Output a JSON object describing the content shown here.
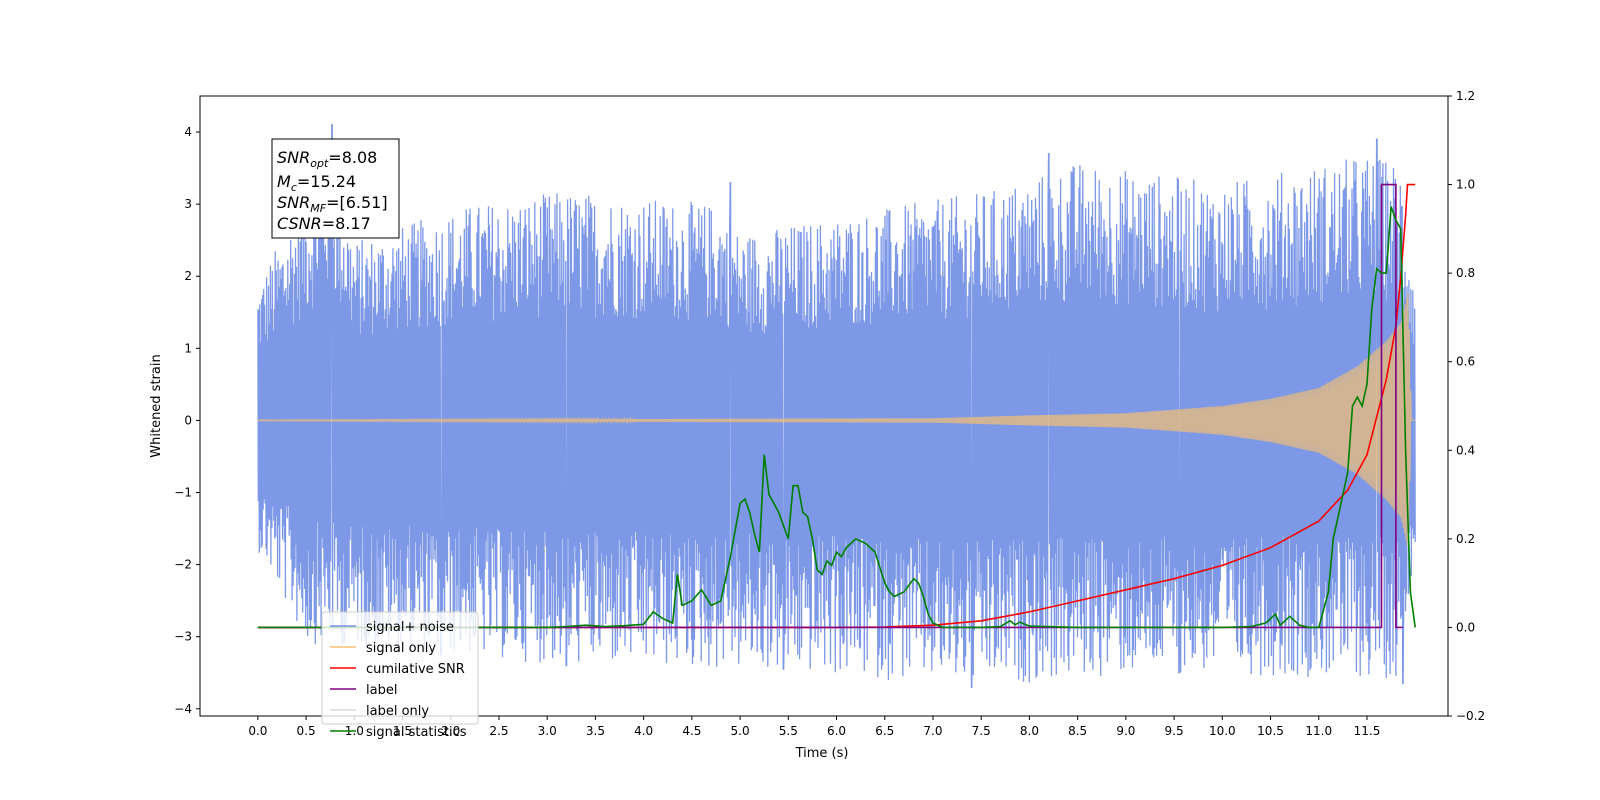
{
  "chart_data": {
    "type": "line",
    "xlabel": "Time (s)",
    "ylabel": "Whitened strain",
    "xlim": [
      -0.6,
      12.34
    ],
    "ylim": [
      -4.1,
      4.5
    ],
    "y2lim": [
      -0.2,
      1.2
    ],
    "xticks": [
      "0.0",
      "0.5",
      "1.0",
      "1.5",
      "2.0",
      "2.5",
      "3.0",
      "3.5",
      "4.0",
      "4.5",
      "5.0",
      "5.5",
      "6.0",
      "6.5",
      "7.0",
      "7.5",
      "8.0",
      "8.5",
      "9.0",
      "9.5",
      "10.0",
      "10.5",
      "11.0",
      "11.5"
    ],
    "yticks": [
      -4,
      -3,
      -2,
      -1,
      0,
      1,
      2,
      3,
      4
    ],
    "y2ticks": [
      -0.2,
      0.0,
      0.2,
      0.4,
      0.6,
      0.8,
      1.0,
      1.2
    ],
    "grid": false,
    "legend_position": "lower-left",
    "legend": [
      {
        "label": "signal+ noise",
        "color": "#7592e6"
      },
      {
        "label": "signal only",
        "color": "#f5c070"
      },
      {
        "label": "cumilative SNR",
        "color": "#ff0000"
      },
      {
        "label": "label",
        "color": "#800080"
      },
      {
        "label": "label only",
        "color": "#d8d8d8"
      },
      {
        "label": "signal statistics",
        "color": "#008000"
      }
    ],
    "annotation": {
      "snr_opt": {
        "sym": "SNR",
        "sub": "opt",
        "value": "=8.08"
      },
      "mc": {
        "sym": "M",
        "sub": "c",
        "value": "=15.24"
      },
      "snr_mf": {
        "sym": "SNR",
        "sub": "MF",
        "value": "=[6.51]"
      },
      "csnr": {
        "sym": "CSNR",
        "value": "=8.17"
      }
    },
    "series": [
      {
        "name": "signal+ noise",
        "axis": "left",
        "color": "#7592e6",
        "x_range": [
          0.0,
          12.0
        ],
        "envelope_top": [
          [
            0.0,
            1.9
          ],
          [
            0.75,
            3.9
          ],
          [
            1.0,
            2.5
          ],
          [
            2.2,
            3.0
          ],
          [
            3.2,
            3.2
          ],
          [
            4.8,
            3.0
          ],
          [
            5.0,
            2.6
          ],
          [
            7.6,
            3.2
          ],
          [
            8.5,
            3.6
          ],
          [
            10.0,
            3.3
          ],
          [
            11.5,
            3.7
          ],
          [
            11.85,
            3.6
          ],
          [
            12.0,
            2.0
          ]
        ],
        "envelope_bottom": [
          [
            0.0,
            -1.8
          ],
          [
            0.5,
            -3.1
          ],
          [
            3.2,
            -3.4
          ],
          [
            5.5,
            -3.5
          ],
          [
            7.4,
            -3.7
          ],
          [
            9.5,
            -3.5
          ],
          [
            11.8,
            -3.6
          ],
          [
            12.0,
            -1.8
          ]
        ],
        "spikes": [
          [
            0.77,
            4.1
          ],
          [
            1.9,
            -3.25
          ],
          [
            3.2,
            -3.4
          ],
          [
            4.9,
            3.3
          ],
          [
            5.45,
            -3.45
          ],
          [
            7.4,
            -3.7
          ],
          [
            8.2,
            3.7
          ],
          [
            9.55,
            -3.5
          ],
          [
            11.6,
            3.9
          ],
          [
            11.87,
            -3.65
          ]
        ]
      },
      {
        "name": "signal only",
        "axis": "left",
        "color": "#f5c070",
        "x_range": [
          0.0,
          12.0
        ],
        "amplitude": [
          [
            0.0,
            0.005
          ],
          [
            7.0,
            0.03
          ],
          [
            8.0,
            0.07
          ],
          [
            9.0,
            0.1
          ],
          [
            10.0,
            0.2
          ],
          [
            10.5,
            0.3
          ],
          [
            11.0,
            0.45
          ],
          [
            11.4,
            0.75
          ],
          [
            11.7,
            1.1
          ],
          [
            11.85,
            1.35
          ],
          [
            11.93,
            1.8
          ],
          [
            11.96,
            0.0
          ]
        ]
      },
      {
        "name": "cumilative SNR",
        "axis": "right",
        "color": "#ff0000",
        "x": [
          0.0,
          6.0,
          6.5,
          7.0,
          7.5,
          8.0,
          8.5,
          9.0,
          9.5,
          10.0,
          10.5,
          11.0,
          11.3,
          11.5,
          11.7,
          11.8,
          11.85,
          11.9,
          11.92,
          12.0
        ],
        "values": [
          0.0,
          0.0,
          0.001,
          0.005,
          0.015,
          0.035,
          0.06,
          0.085,
          0.11,
          0.14,
          0.18,
          0.24,
          0.31,
          0.39,
          0.56,
          0.68,
          0.79,
          0.93,
          1.0,
          1.0
        ]
      },
      {
        "name": "label",
        "axis": "right",
        "color": "#800080",
        "x": [
          0.0,
          11.65,
          11.65,
          11.8,
          11.8,
          11.87
        ],
        "values": [
          0.0,
          0.0,
          1.0,
          1.0,
          0.0,
          0.0
        ]
      },
      {
        "name": "signal statistics",
        "axis": "right",
        "color": "#008000",
        "x": [
          0.0,
          3.0,
          3.2,
          3.4,
          3.6,
          3.8,
          4.0,
          4.1,
          4.2,
          4.3,
          4.35,
          4.4,
          4.5,
          4.6,
          4.7,
          4.8,
          4.9,
          5.0,
          5.05,
          5.1,
          5.15,
          5.2,
          5.25,
          5.3,
          5.4,
          5.5,
          5.55,
          5.6,
          5.65,
          5.7,
          5.75,
          5.8,
          5.85,
          5.9,
          5.95,
          6.0,
          6.05,
          6.1,
          6.2,
          6.3,
          6.4,
          6.5,
          6.55,
          6.6,
          6.7,
          6.8,
          6.85,
          6.9,
          6.95,
          7.0,
          7.1,
          7.5,
          7.7,
          7.8,
          7.85,
          7.9,
          8.0,
          8.5,
          9.0,
          9.5,
          10.0,
          10.3,
          10.45,
          10.55,
          10.6,
          10.7,
          10.8,
          10.9,
          11.0,
          11.1,
          11.15,
          11.2,
          11.3,
          11.35,
          11.4,
          11.45,
          11.5,
          11.55,
          11.6,
          11.65,
          11.7,
          11.75,
          11.8,
          11.85,
          11.9,
          11.95,
          12.0
        ],
        "values": [
          0.0,
          0.0,
          0.002,
          0.005,
          0.002,
          0.004,
          0.007,
          0.035,
          0.02,
          0.01,
          0.12,
          0.05,
          0.06,
          0.085,
          0.05,
          0.06,
          0.16,
          0.28,
          0.29,
          0.26,
          0.21,
          0.17,
          0.39,
          0.3,
          0.26,
          0.2,
          0.32,
          0.32,
          0.26,
          0.25,
          0.2,
          0.13,
          0.12,
          0.15,
          0.14,
          0.17,
          0.16,
          0.18,
          0.2,
          0.19,
          0.17,
          0.1,
          0.08,
          0.07,
          0.08,
          0.11,
          0.1,
          0.07,
          0.03,
          0.01,
          0.0,
          0.0,
          0.002,
          0.015,
          0.006,
          0.012,
          0.003,
          0.0,
          0.0,
          0.0,
          0.0,
          0.002,
          0.01,
          0.03,
          0.005,
          0.025,
          0.005,
          0.0,
          0.0,
          0.08,
          0.2,
          0.25,
          0.35,
          0.5,
          0.52,
          0.5,
          0.55,
          0.72,
          0.81,
          0.8,
          0.8,
          0.95,
          0.92,
          0.9,
          0.4,
          0.08,
          0.0
        ]
      }
    ]
  }
}
